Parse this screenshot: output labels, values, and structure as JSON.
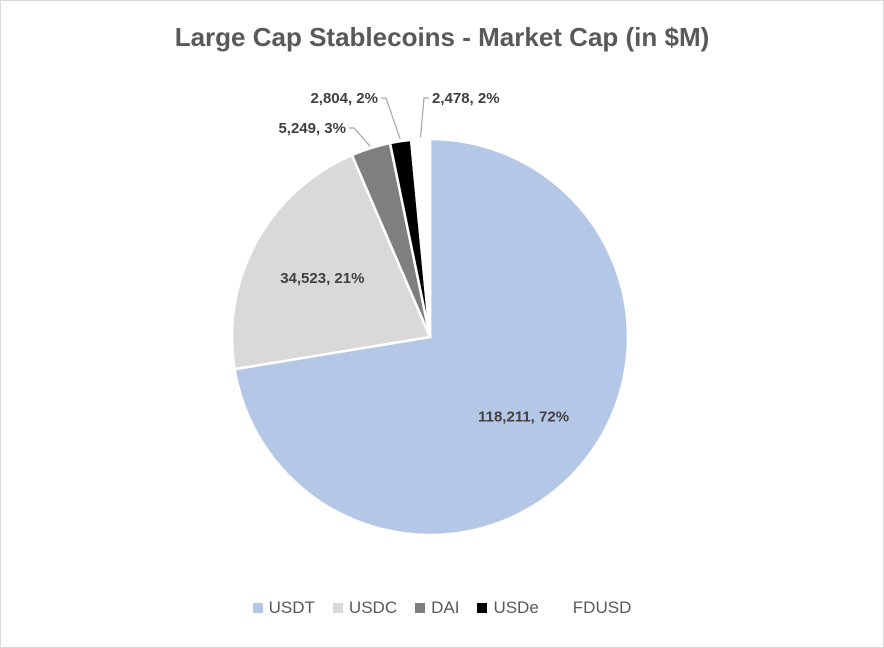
{
  "chart_data": {
    "type": "pie",
    "title": "Large Cap Stablecoins - Market Cap (in $M)",
    "categories": [
      "USDT",
      "USDC",
      "DAI",
      "USDe",
      "FDUSD"
    ],
    "values": [
      118211,
      34523,
      5249,
      2804,
      2478
    ],
    "labels": [
      "118,211, 72%",
      "34,523, 21%",
      "5,249, 3%",
      "2,804, 2%",
      "2,478, 2%"
    ],
    "colors": [
      "#b4c7e7",
      "#d9d9d9",
      "#7f7f7f",
      "#000000",
      "#ffffff"
    ],
    "legend": "bottom"
  }
}
